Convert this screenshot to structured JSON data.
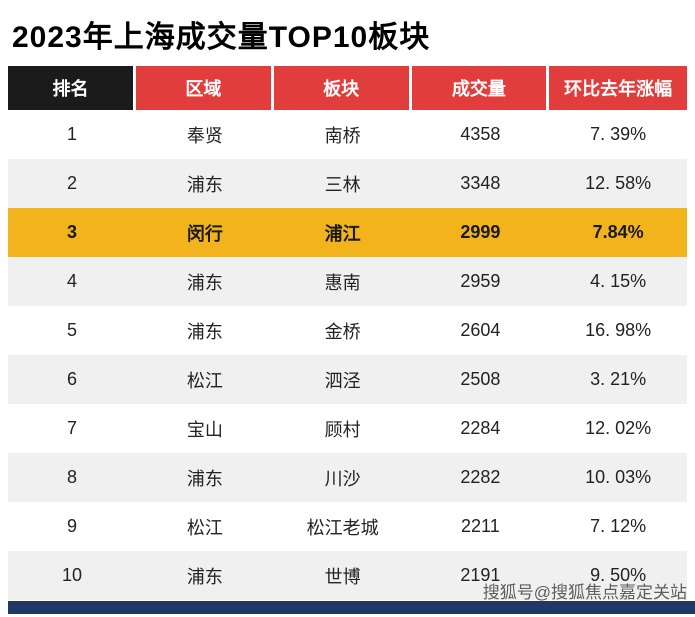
{
  "title": "2023年上海成交量TOP10板块",
  "table": {
    "headers": {
      "rank": "排名",
      "region": "区域",
      "block": "板块",
      "volume": "成交量",
      "change": "环比去年涨幅"
    },
    "rows": [
      {
        "rank": "1",
        "region": "奉贤",
        "block": "南桥",
        "volume": "4358",
        "change": "7. 39%"
      },
      {
        "rank": "2",
        "region": "浦东",
        "block": "三林",
        "volume": "3348",
        "change": "12. 58%"
      },
      {
        "rank": "3",
        "region": "闵行",
        "block": "浦江",
        "volume": "2999",
        "change": "7.84%"
      },
      {
        "rank": "4",
        "region": "浦东",
        "block": "惠南",
        "volume": "2959",
        "change": "4. 15%"
      },
      {
        "rank": "5",
        "region": "浦东",
        "block": "金桥",
        "volume": "2604",
        "change": "16. 98%"
      },
      {
        "rank": "6",
        "region": "松江",
        "block": "泗泾",
        "volume": "2508",
        "change": "3. 21%"
      },
      {
        "rank": "7",
        "region": "宝山",
        "block": "顾村",
        "volume": "2284",
        "change": "12. 02%"
      },
      {
        "rank": "8",
        "region": "浦东",
        "block": "川沙",
        "volume": "2282",
        "change": "10. 03%"
      },
      {
        "rank": "9",
        "region": "松江",
        "block": "松江老城",
        "volume": "2211",
        "change": "7. 12%"
      },
      {
        "rank": "10",
        "region": "浦东",
        "block": "世博",
        "volume": "2191",
        "change": "9. 50%"
      }
    ],
    "highlighted_rank": "3"
  },
  "watermark": "搜狐号@搜狐焦点嘉定关站",
  "colors": {
    "header_rank_bg": "#1b1b1b",
    "header_bg": "#e23d3d",
    "highlight_bg": "#f2b31d",
    "row_alt_bg": "#f0f0f0",
    "bottom_bar": "#1f3864"
  }
}
